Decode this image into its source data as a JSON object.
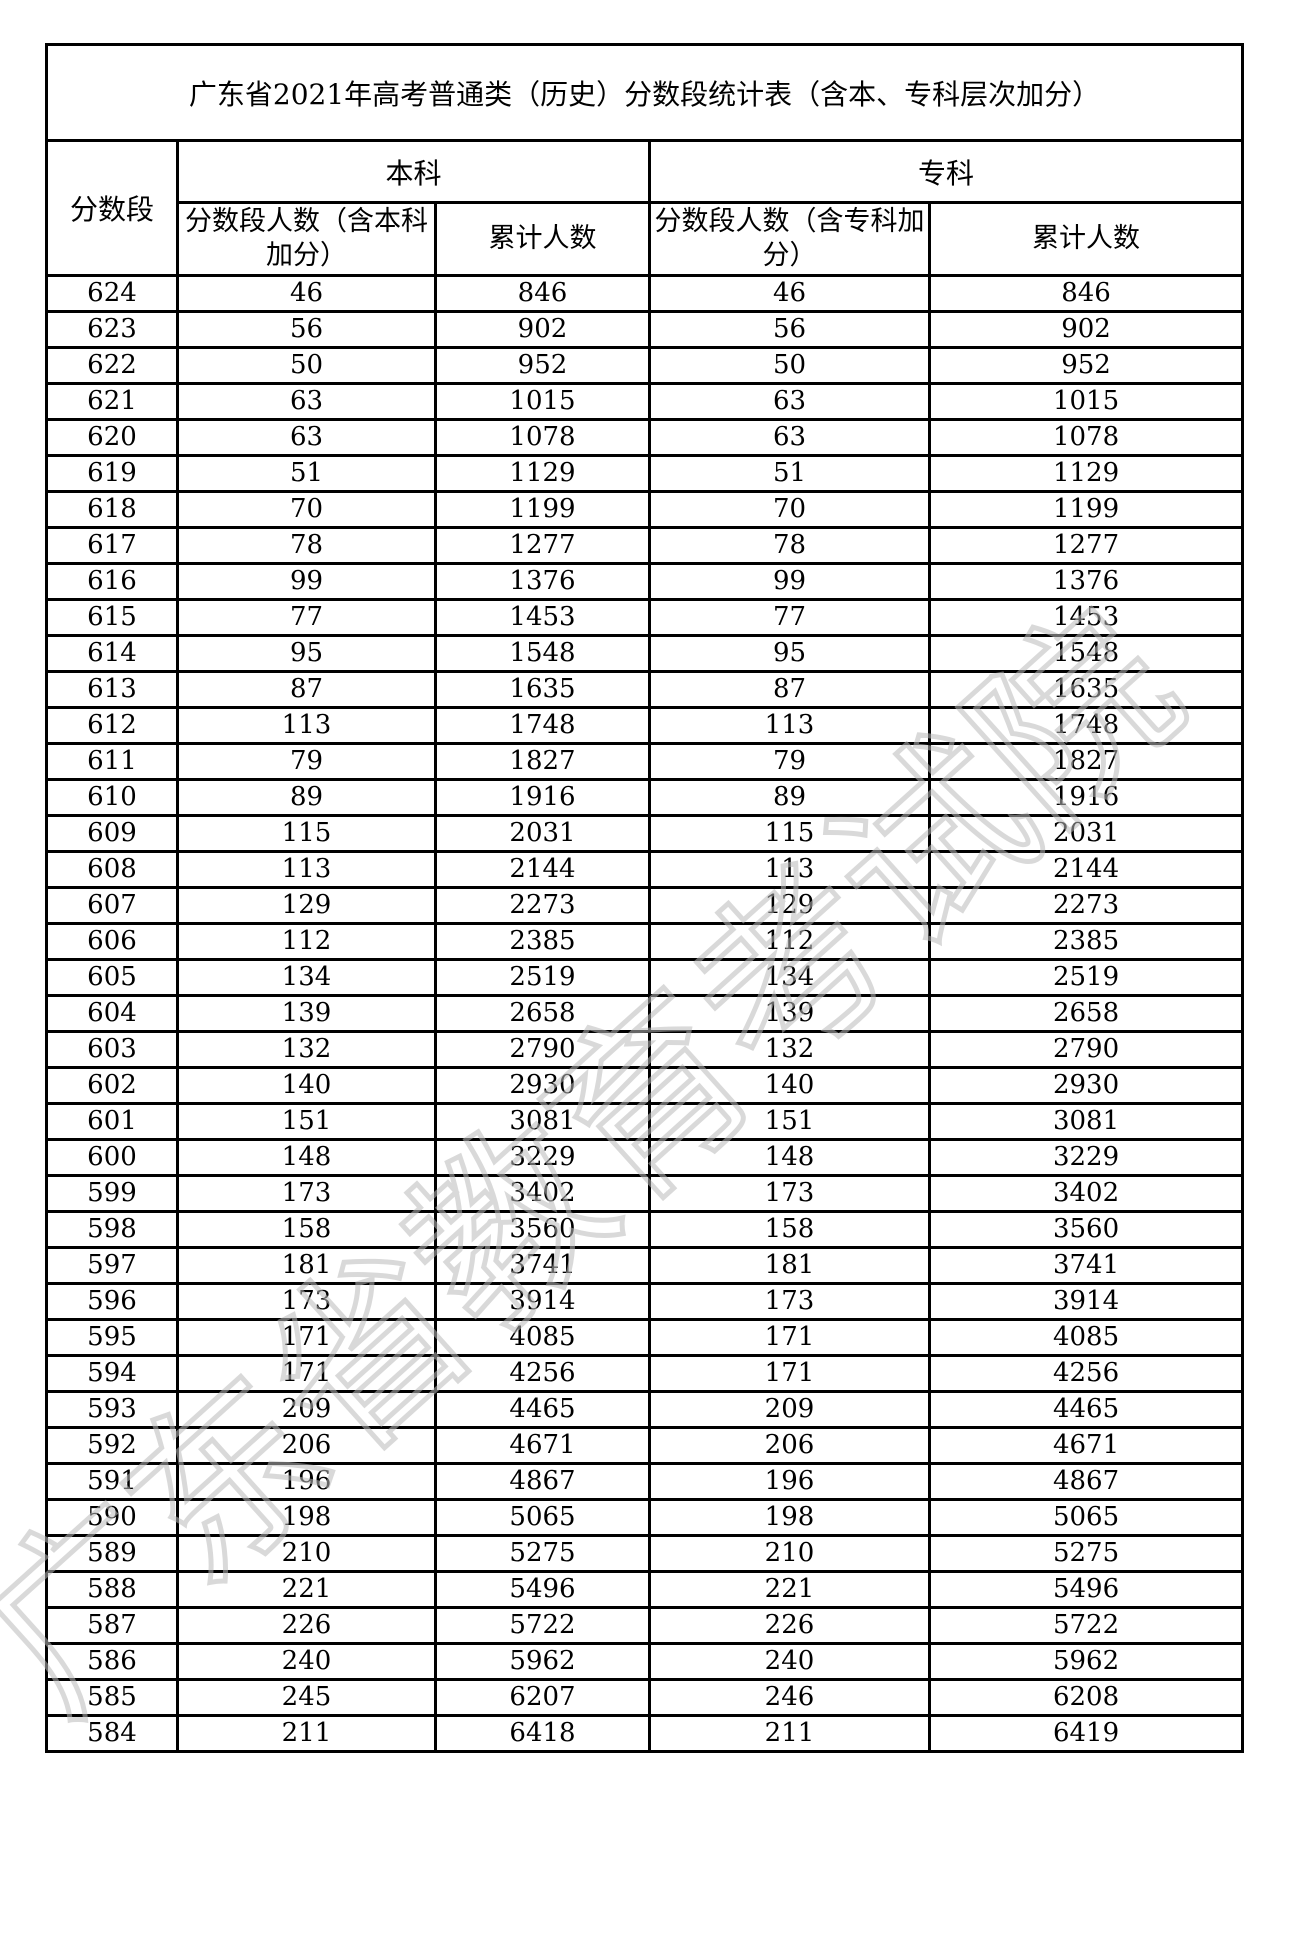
{
  "title": "广东省2021年高考普通类（历史）分数段统计表（含本、专科层次加分）",
  "headers": {
    "score": "分数段",
    "undergrad": "本科",
    "junior": "专科",
    "undergrad_count": "分数段人数（含本科加分）",
    "undergrad_cumulative": "累计人数",
    "junior_count": "分数段人数（含专科加分）",
    "junior_cumulative": "累计人数"
  },
  "watermark": "广东省教育考试院",
  "rows": [
    [
      "624",
      "46",
      "846",
      "46",
      "846"
    ],
    [
      "623",
      "56",
      "902",
      "56",
      "902"
    ],
    [
      "622",
      "50",
      "952",
      "50",
      "952"
    ],
    [
      "621",
      "63",
      "1015",
      "63",
      "1015"
    ],
    [
      "620",
      "63",
      "1078",
      "63",
      "1078"
    ],
    [
      "619",
      "51",
      "1129",
      "51",
      "1129"
    ],
    [
      "618",
      "70",
      "1199",
      "70",
      "1199"
    ],
    [
      "617",
      "78",
      "1277",
      "78",
      "1277"
    ],
    [
      "616",
      "99",
      "1376",
      "99",
      "1376"
    ],
    [
      "615",
      "77",
      "1453",
      "77",
      "1453"
    ],
    [
      "614",
      "95",
      "1548",
      "95",
      "1548"
    ],
    [
      "613",
      "87",
      "1635",
      "87",
      "1635"
    ],
    [
      "612",
      "113",
      "1748",
      "113",
      "1748"
    ],
    [
      "611",
      "79",
      "1827",
      "79",
      "1827"
    ],
    [
      "610",
      "89",
      "1916",
      "89",
      "1916"
    ],
    [
      "609",
      "115",
      "2031",
      "115",
      "2031"
    ],
    [
      "608",
      "113",
      "2144",
      "113",
      "2144"
    ],
    [
      "607",
      "129",
      "2273",
      "129",
      "2273"
    ],
    [
      "606",
      "112",
      "2385",
      "112",
      "2385"
    ],
    [
      "605",
      "134",
      "2519",
      "134",
      "2519"
    ],
    [
      "604",
      "139",
      "2658",
      "139",
      "2658"
    ],
    [
      "603",
      "132",
      "2790",
      "132",
      "2790"
    ],
    [
      "602",
      "140",
      "2930",
      "140",
      "2930"
    ],
    [
      "601",
      "151",
      "3081",
      "151",
      "3081"
    ],
    [
      "600",
      "148",
      "3229",
      "148",
      "3229"
    ],
    [
      "599",
      "173",
      "3402",
      "173",
      "3402"
    ],
    [
      "598",
      "158",
      "3560",
      "158",
      "3560"
    ],
    [
      "597",
      "181",
      "3741",
      "181",
      "3741"
    ],
    [
      "596",
      "173",
      "3914",
      "173",
      "3914"
    ],
    [
      "595",
      "171",
      "4085",
      "171",
      "4085"
    ],
    [
      "594",
      "171",
      "4256",
      "171",
      "4256"
    ],
    [
      "593",
      "209",
      "4465",
      "209",
      "4465"
    ],
    [
      "592",
      "206",
      "4671",
      "206",
      "4671"
    ],
    [
      "591",
      "196",
      "4867",
      "196",
      "4867"
    ],
    [
      "590",
      "198",
      "5065",
      "198",
      "5065"
    ],
    [
      "589",
      "210",
      "5275",
      "210",
      "5275"
    ],
    [
      "588",
      "221",
      "5496",
      "221",
      "5496"
    ],
    [
      "587",
      "226",
      "5722",
      "226",
      "5722"
    ],
    [
      "586",
      "240",
      "5962",
      "240",
      "5962"
    ],
    [
      "585",
      "245",
      "6207",
      "246",
      "6208"
    ],
    [
      "584",
      "211",
      "6418",
      "211",
      "6419"
    ]
  ]
}
